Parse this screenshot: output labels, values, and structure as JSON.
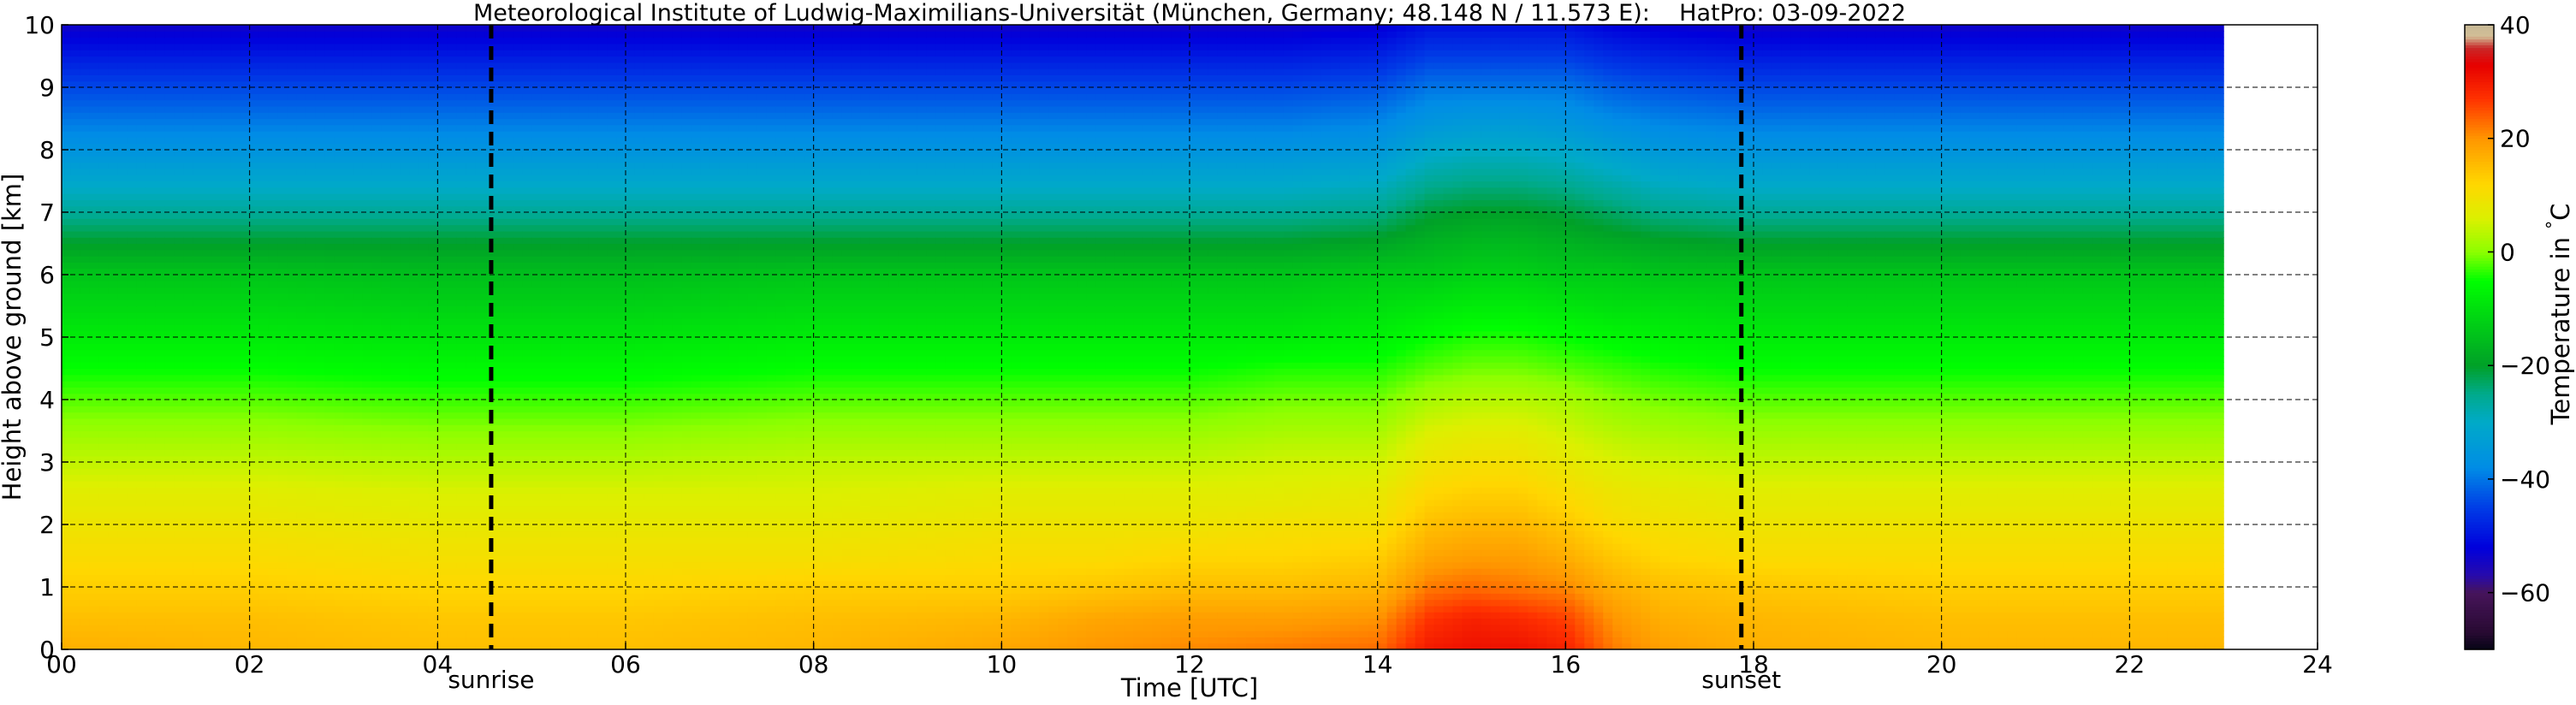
{
  "chart_data": {
    "type": "heatmap",
    "title": "Meteorological Institute of Ludwig-Maximilians-Universität (München, Germany; 48.148 N / 11.573 E):    HatPro: 03-09-2022",
    "xlabel": "Time [UTC]",
    "ylabel": "Height above ground [km]",
    "xlim": [
      0,
      24
    ],
    "ylim": [
      0,
      10
    ],
    "x_ticks": [
      "00",
      "02",
      "04",
      "06",
      "08",
      "10",
      "12",
      "14",
      "16",
      "18",
      "20",
      "22",
      "24"
    ],
    "y_ticks": [
      "0",
      "1",
      "2",
      "3",
      "4",
      "5",
      "6",
      "7",
      "8",
      "9",
      "10"
    ],
    "grid": true,
    "data_end_hour": 23.0,
    "markers": [
      {
        "label": "sunrise",
        "x": 4.57
      },
      {
        "label": "sunset",
        "x": 17.87
      }
    ],
    "colorbar": {
      "label": "Temperature in $^\\circ$C",
      "range": [
        -70,
        40
      ],
      "ticks": [
        "40",
        "20",
        "0",
        "−20",
        "−40",
        "−60"
      ]
    },
    "heights_km": [
      0,
      0.5,
      1,
      1.5,
      2,
      2.5,
      3,
      3.5,
      4,
      4.5,
      5,
      5.5,
      6,
      6.5,
      7,
      7.5,
      8,
      8.5,
      9,
      9.5,
      10
    ],
    "times_h": [
      0,
      2,
      4,
      6,
      8,
      10,
      11,
      12,
      13,
      14,
      14.55,
      15,
      15.5,
      16,
      16.5,
      17,
      18,
      20,
      22,
      23
    ],
    "temperature_c": [
      [
        17,
        16,
        15,
        15,
        16,
        18,
        20,
        21,
        22,
        23,
        30,
        31,
        31,
        29,
        22,
        19,
        17,
        16,
        16,
        16
      ],
      [
        15,
        15,
        14,
        14,
        15,
        16,
        18,
        19,
        19,
        20,
        27,
        29,
        28,
        26,
        20,
        17,
        16,
        15,
        15,
        15
      ],
      [
        13,
        13,
        12,
        12,
        13,
        13,
        14,
        15,
        15,
        16,
        22,
        23,
        22,
        21,
        17,
        15,
        14,
        13,
        13,
        13
      ],
      [
        11,
        11,
        10,
        10,
        10,
        11,
        11,
        12,
        12,
        13,
        18,
        19,
        19,
        17,
        14,
        12,
        11,
        11,
        11,
        11
      ],
      [
        9,
        9,
        8,
        8,
        8,
        9,
        9,
        9,
        10,
        10,
        15,
        16,
        16,
        14,
        11,
        10,
        9,
        9,
        9,
        9
      ],
      [
        7,
        7,
        6,
        6,
        6,
        7,
        7,
        7,
        7,
        8,
        12,
        13,
        13,
        11,
        9,
        8,
        7,
        7,
        7,
        7
      ],
      [
        4,
        4,
        3,
        3,
        4,
        4,
        4,
        4,
        5,
        5,
        9,
        10,
        10,
        8,
        6,
        5,
        4,
        4,
        4,
        4
      ],
      [
        1,
        1,
        0,
        0,
        1,
        1,
        1,
        1,
        2,
        2,
        6,
        7,
        7,
        5,
        3,
        2,
        1,
        1,
        1,
        1
      ],
      [
        -2,
        -2,
        -3,
        -3,
        -2,
        -2,
        -2,
        -2,
        -1,
        -1,
        2,
        3,
        3,
        2,
        0,
        -1,
        -2,
        -2,
        -2,
        -2
      ],
      [
        -5,
        -5,
        -6,
        -6,
        -5,
        -5,
        -5,
        -5,
        -4,
        -4,
        -2,
        -1,
        -1,
        -2,
        -3,
        -4,
        -5,
        -5,
        -5,
        -5
      ],
      [
        -8,
        -8,
        -9,
        -9,
        -8,
        -8,
        -8,
        -8,
        -8,
        -7,
        -5,
        -4,
        -4,
        -5,
        -6,
        -7,
        -8,
        -8,
        -8,
        -8
      ],
      [
        -11,
        -11,
        -12,
        -12,
        -11,
        -11,
        -11,
        -11,
        -11,
        -10,
        -9,
        -8,
        -8,
        -9,
        -10,
        -10,
        -11,
        -11,
        -11,
        -11
      ],
      [
        -14,
        -14,
        -15,
        -15,
        -14,
        -14,
        -14,
        -14,
        -14,
        -13,
        -13,
        -12,
        -12,
        -13,
        -13,
        -14,
        -14,
        -14,
        -14,
        -14
      ],
      [
        -20,
        -20,
        -20,
        -20,
        -20,
        -20,
        -20,
        -20,
        -20,
        -19,
        -17,
        -16,
        -16,
        -17,
        -18,
        -19,
        -20,
        -20,
        -20,
        -20
      ],
      [
        -26,
        -26,
        -26,
        -26,
        -26,
        -26,
        -26,
        -26,
        -26,
        -25,
        -21,
        -20,
        -20,
        -21,
        -23,
        -25,
        -26,
        -26,
        -26,
        -26
      ],
      [
        -31,
        -31,
        -31,
        -31,
        -31,
        -31,
        -31,
        -31,
        -31,
        -30,
        -26,
        -25,
        -25,
        -26,
        -28,
        -30,
        -31,
        -31,
        -31,
        -31
      ],
      [
        -36,
        -36,
        -36,
        -36,
        -36,
        -36,
        -36,
        -36,
        -36,
        -35,
        -31,
        -30,
        -30,
        -31,
        -33,
        -35,
        -36,
        -36,
        -36,
        -36
      ],
      [
        -40,
        -40,
        -40,
        -40,
        -40,
        -40,
        -40,
        -40,
        -40,
        -39,
        -36,
        -35,
        -35,
        -36,
        -38,
        -39,
        -40,
        -40,
        -40,
        -40
      ],
      [
        -44,
        -44,
        -44,
        -44,
        -44,
        -44,
        -44,
        -44,
        -44,
        -43,
        -40,
        -40,
        -40,
        -40,
        -42,
        -43,
        -44,
        -44,
        -44,
        -44
      ],
      [
        -49,
        -49,
        -49,
        -49,
        -49,
        -49,
        -49,
        -49,
        -49,
        -48,
        -45,
        -45,
        -45,
        -45,
        -47,
        -48,
        -49,
        -49,
        -49,
        -49
      ],
      [
        -54,
        -54,
        -54,
        -54,
        -54,
        -54,
        -54,
        -54,
        -54,
        -53,
        -50,
        -50,
        -50,
        -50,
        -52,
        -53,
        -54,
        -54,
        -54,
        -54
      ]
    ]
  }
}
